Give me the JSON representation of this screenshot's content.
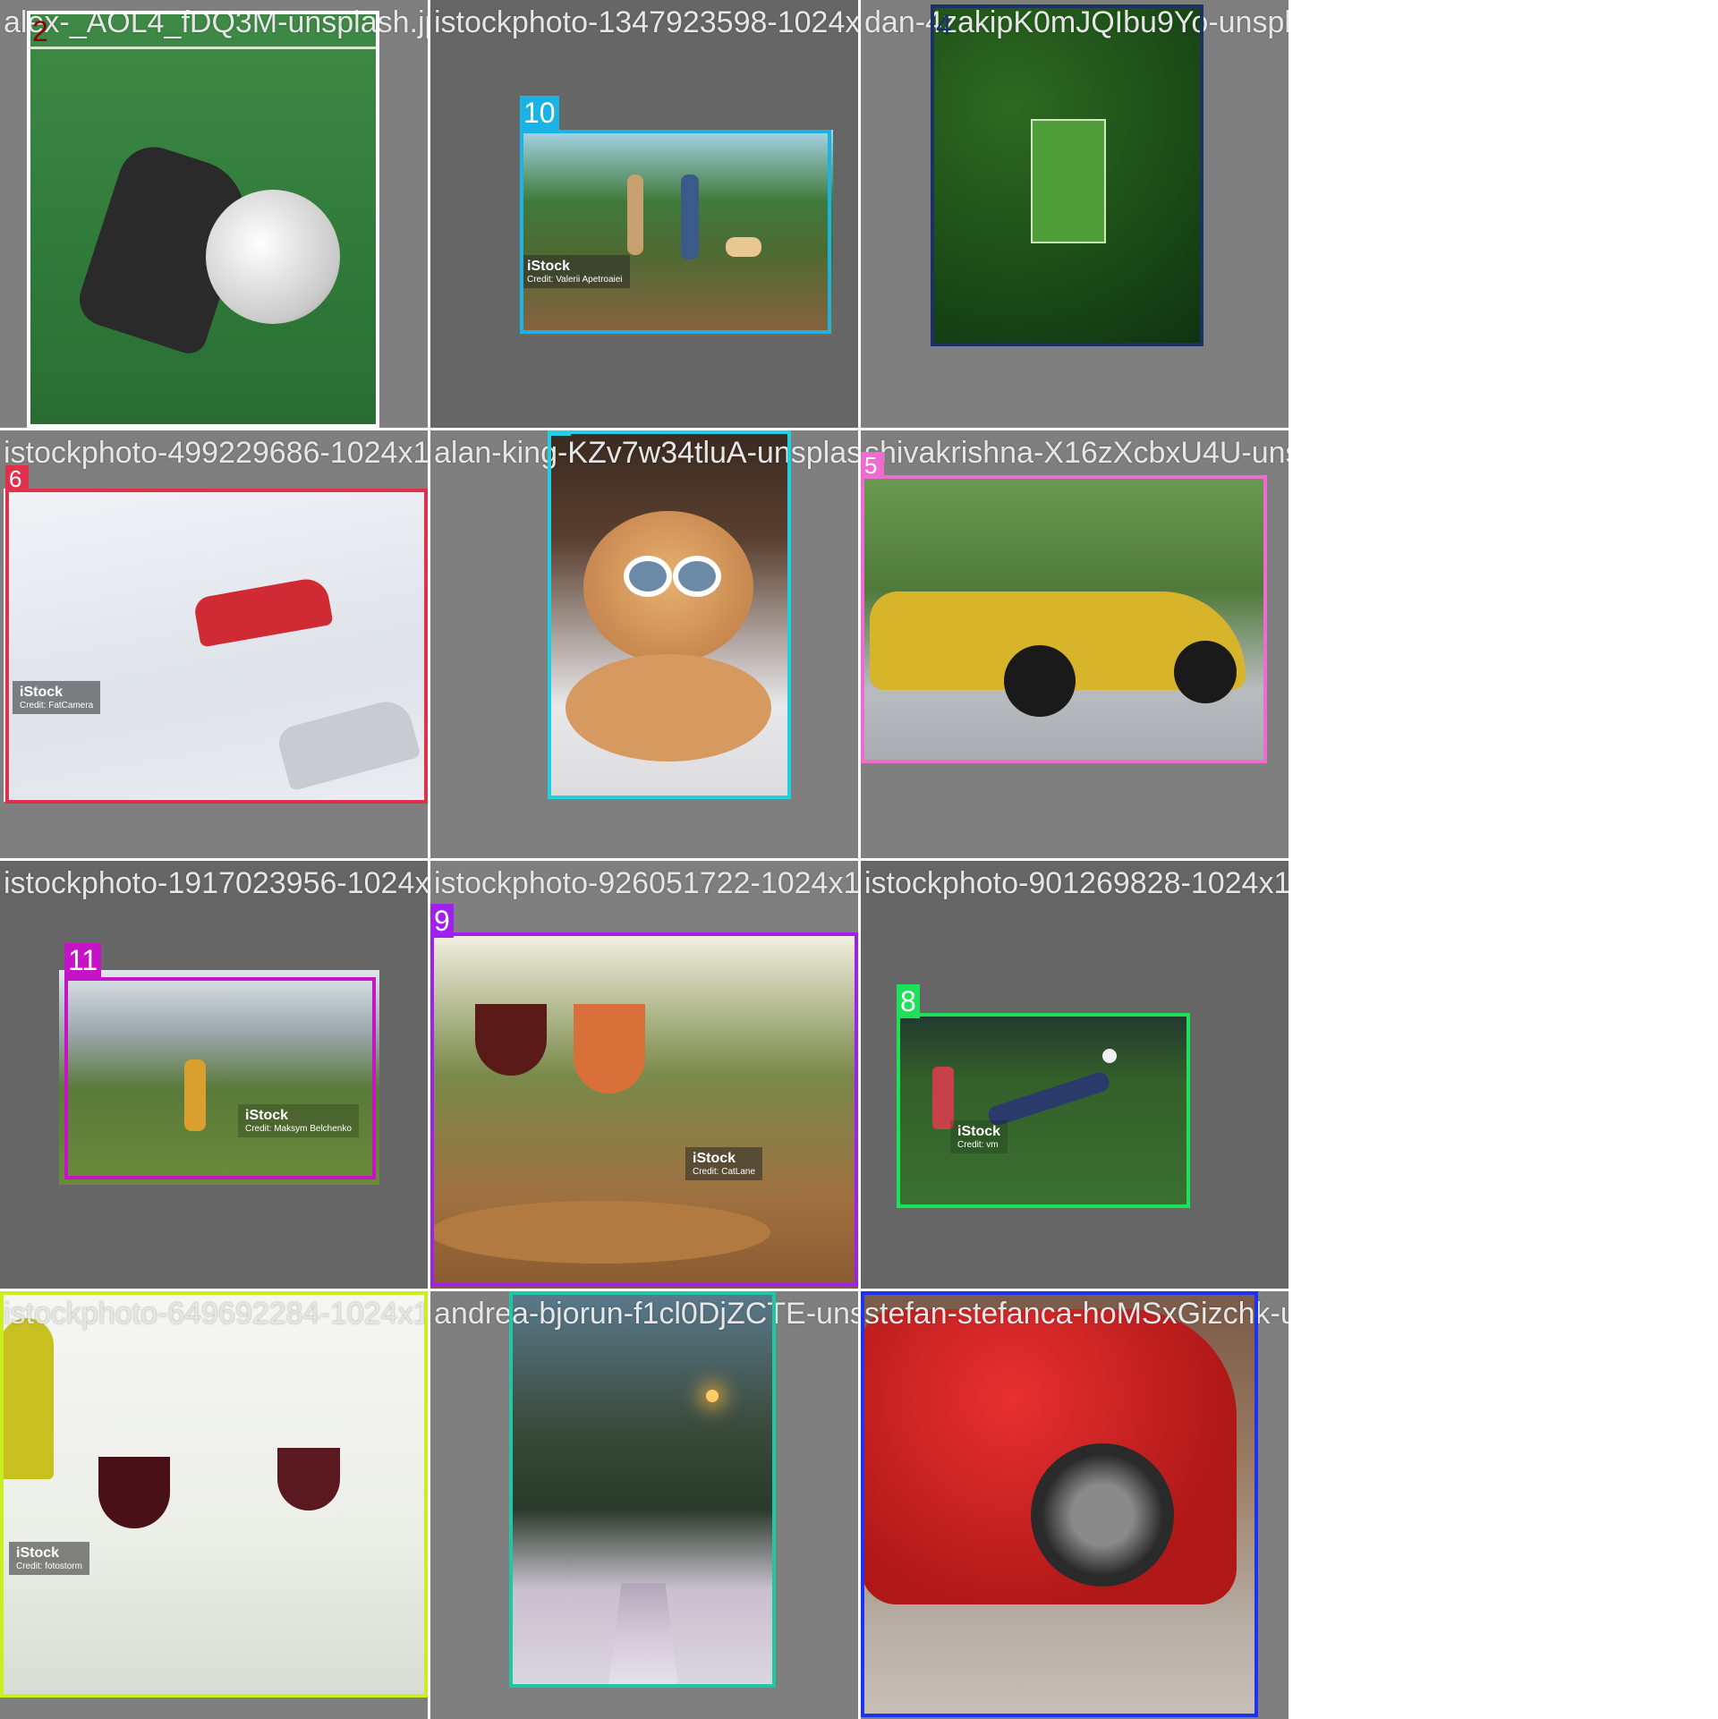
{
  "tiles": [
    {
      "file": "alex-_AOL4_fDQ3M-unsplash.jpg"
    },
    {
      "file": "istockphoto-1347923598-1024x1024.jpg"
    },
    {
      "file": "dan-4zakipK0mJQIbu9Yo-unsplash.jpg"
    },
    {
      "file": "istockphoto-499229686-1024x1024.jpg"
    },
    {
      "file": "alan-king-KZv7w34tluA-unsplash.jpg"
    },
    {
      "file": "shivakrishna-X16zXcbxU4U-unsplash.jpg"
    },
    {
      "file": "istockphoto-1917023956-1024x1024.jpg"
    },
    {
      "file": "istockphoto-926051722-1024x1024.jpg"
    },
    {
      "file": "istockphoto-901269828-1024x1024.jpg"
    },
    {
      "file": "istockphoto-649692284-1024x1024.jpg"
    },
    {
      "file": "andrea-bjorun-f1cl0DjZCTE-unsplash.jpg"
    },
    {
      "file": "stefan-stefanca-hoMSxGizchk-unsplash.jpg"
    }
  ],
  "labels": {
    "l2": {
      "id": "2",
      "color": "#8b0000"
    },
    "l10": {
      "id": "10",
      "color": "#1ab3e6"
    },
    "l4": {
      "id": "4",
      "color": "#1a3066"
    },
    "l6": {
      "id": "6",
      "color": "#e0304a"
    },
    "l1": {
      "id": "1",
      "color": "#22cfe0"
    },
    "l5": {
      "id": "5",
      "color": "#f06bd0"
    },
    "l11": {
      "id": "11",
      "color": "#c514c5"
    },
    "l9": {
      "id": "9",
      "color": "#a020f0"
    },
    "l8": {
      "id": "8",
      "color": "#1ee05a"
    },
    "l7": {
      "id": "7",
      "color": "#c8f020"
    },
    "l3": {
      "id": "3",
      "color": "#1ec8a5"
    },
    "l0": {
      "id": "0",
      "color": "#1e32f0"
    }
  },
  "watermarks": {
    "w1": {
      "brand": "iStock",
      "credit": "Credit: Valerii Apetroaiei"
    },
    "w2": {
      "brand": "iStock",
      "credit": "Credit: FatCamera"
    },
    "w3": {
      "brand": "iStock",
      "credit": "Credit: Maksym Belchenko"
    },
    "w4": {
      "brand": "iStock",
      "credit": "Credit: CatLane"
    },
    "w5": {
      "brand": "iStock",
      "credit": "Credit: vm"
    },
    "w6": {
      "brand": "iStock",
      "credit": "Credit: fotostorm"
    }
  }
}
